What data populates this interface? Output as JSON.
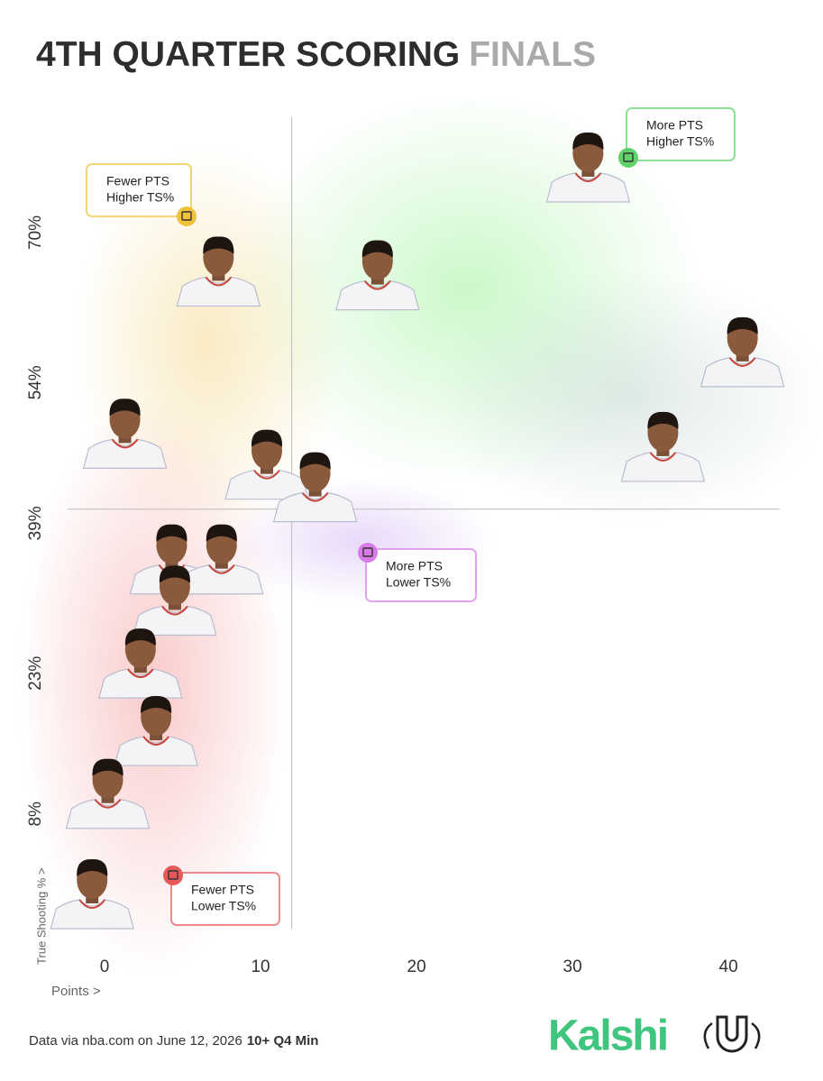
{
  "chart_data": {
    "type": "scatter",
    "title": "4TH QUARTER SCORING",
    "title_highlight": "FINALS",
    "x_label": "Points >",
    "y_label": "True Shooting % >",
    "x": [
      31,
      7.3,
      17.5,
      40.9,
      1.3,
      35.8,
      10.4,
      13.5,
      4.3,
      7.5,
      4.5,
      2.3,
      3.3,
      0.2,
      -0.8
    ],
    "values": [
      77.5,
      66.4,
      66,
      57.8,
      49.1,
      47.7,
      45.8,
      43.4,
      35.7,
      35.7,
      31.3,
      24.6,
      17.4,
      10.7,
      0
    ],
    "xlim": [
      -3.5,
      43
    ],
    "ylim": [
      -4,
      82
    ],
    "xticks": [
      0,
      10,
      20,
      30,
      40
    ],
    "yticks": [
      {
        "value": 8,
        "label": "8%"
      },
      {
        "value": 23,
        "label": "23%"
      },
      {
        "value": 39,
        "label": "39%"
      },
      {
        "value": 54,
        "label": "54%"
      },
      {
        "value": 70,
        "label": "70%"
      }
    ],
    "reference_lines": {
      "x": 12,
      "y": 40.5
    },
    "annotations": [
      {
        "lines": [
          "More PTS",
          "Higher TS%"
        ],
        "color": "#5fd36a"
      },
      {
        "lines": [
          "Fewer PTS",
          "Higher TS%"
        ],
        "color": "#f0c23c"
      },
      {
        "lines": [
          "More PTS",
          "Lower TS%"
        ],
        "color": "#d77be8"
      },
      {
        "lines": [
          "Fewer PTS",
          "Lower TS%"
        ],
        "color": "#e85a5a"
      }
    ],
    "source": "Data via nba.com on June 12, 2026",
    "source_note": "10+ Q4 Min",
    "brand": "Kalshi"
  }
}
